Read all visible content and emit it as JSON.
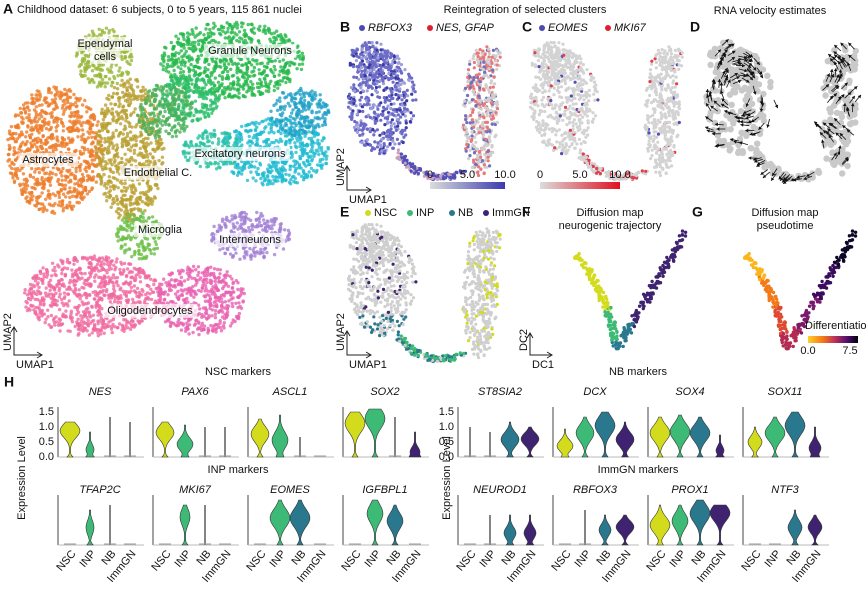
{
  "shared_title": "Reintegration of selected clusters",
  "group_colors": [
    "#d2dc1c",
    "#3dba76",
    "#29788e",
    "#3f2370"
  ],
  "panels": {
    "A": {
      "label": "A",
      "title": "Childhood dataset: 6 subjects, 0 to 5 years, 115 861 nuclei",
      "clusters": [
        [
          "Ependymal",
          "cells"
        ],
        [
          "Granule Neurons"
        ],
        [
          "Astrocytes"
        ],
        [
          "Endothelial C."
        ],
        [
          "Excitatory neurons"
        ],
        [
          "Microglia"
        ],
        [
          "Interneurons"
        ],
        [
          "Oligodendrocytes"
        ]
      ],
      "x_axis": "UMAP1",
      "y_axis": "UMAP2"
    },
    "B": {
      "label": "B",
      "legend": [
        "RBFOX3",
        "NES, GFAP"
      ],
      "colorbar_ticks": [
        "0",
        "5.0",
        "10.0"
      ],
      "x_axis": "UMAP1",
      "y_axis": "UMAP2"
    },
    "C": {
      "label": "C",
      "legend": [
        "EOMES",
        "MKI67"
      ],
      "colorbar_ticks": [
        "0",
        "5.0",
        "10.0"
      ]
    },
    "D": {
      "label": "D",
      "title": "RNA velocity estimates"
    },
    "E": {
      "label": "E",
      "legend": [
        "NSC",
        "INP",
        "NB",
        "ImmGN"
      ],
      "x_axis": "UMAP1",
      "y_axis": "UMAP2"
    },
    "F": {
      "label": "F",
      "title": [
        "Diffusion map",
        "neurogenic trajectory"
      ],
      "x_axis": "DC1",
      "y_axis": "DC2"
    },
    "G": {
      "label": "G",
      "title": [
        "Diffusion map",
        "pseudotime"
      ],
      "colorbar_title": "Differentiation",
      "colorbar_ticks": [
        "0.0",
        "7.5"
      ]
    },
    "H": {
      "label": "H",
      "y_axis": "Expression Level",
      "y_ticks": [
        "0.0",
        "0.5",
        "1.0",
        "1.5"
      ],
      "groups": [
        "NSC",
        "INP",
        "NB",
        "ImmGN"
      ],
      "sets": [
        {
          "title": "NSC markers",
          "genes": [
            "NES",
            "PAX6",
            "ASCL1",
            "SOX2"
          ]
        },
        {
          "title": "NB markers",
          "genes": [
            "ST8SIA2",
            "DCX",
            "SOX4",
            "SOX11"
          ]
        },
        {
          "title": "INP markers",
          "genes": [
            "TFAP2C",
            "MKI67",
            "EOMES",
            "IGFBPL1"
          ]
        },
        {
          "title": "ImmGN markers",
          "genes": [
            "NEUROD1",
            "RBFOX3",
            "PROX1",
            "NTF3"
          ]
        }
      ]
    }
  }
}
